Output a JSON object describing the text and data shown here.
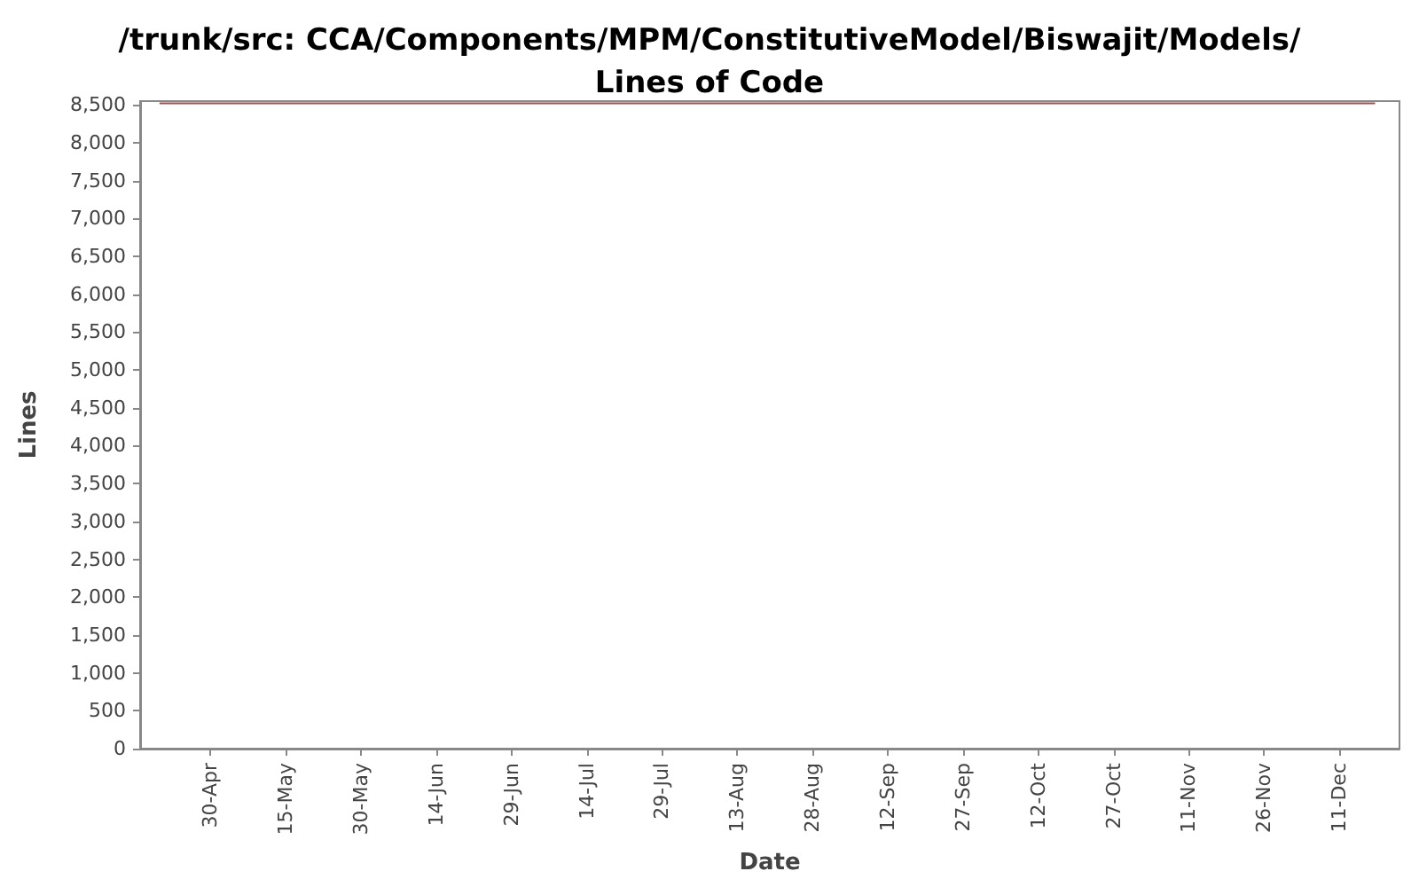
{
  "chart_data": {
    "type": "line",
    "title": "/trunk/src: CCA/Components/MPM/ConstitutiveModel/Biswajit/Models/\nLines of Code",
    "xlabel": "Date",
    "ylabel": "Lines",
    "x": [
      "--04-20",
      "--12-18"
    ],
    "series": [
      {
        "color": "#a05050",
        "values": [
          8520,
          8520
        ]
      }
    ],
    "xlim": [
      "--04-16",
      "--12-23"
    ],
    "xticks": [
      {
        "value": "--04-30",
        "label": "30-Apr"
      },
      {
        "value": "--05-15",
        "label": "15-May"
      },
      {
        "value": "--05-30",
        "label": "30-May"
      },
      {
        "value": "--06-14",
        "label": "14-Jun"
      },
      {
        "value": "--06-29",
        "label": "29-Jun"
      },
      {
        "value": "--07-14",
        "label": "14-Jul"
      },
      {
        "value": "--07-29",
        "label": "29-Jul"
      },
      {
        "value": "--08-13",
        "label": "13-Aug"
      },
      {
        "value": "--08-28",
        "label": "28-Aug"
      },
      {
        "value": "--09-12",
        "label": "12-Sep"
      },
      {
        "value": "--09-27",
        "label": "27-Sep"
      },
      {
        "value": "--10-12",
        "label": "12-Oct"
      },
      {
        "value": "--10-27",
        "label": "27-Oct"
      },
      {
        "value": "--11-11",
        "label": "11-Nov"
      },
      {
        "value": "--11-26",
        "label": "26-Nov"
      },
      {
        "value": "--12-11",
        "label": "11-Dec"
      }
    ],
    "ylim": [
      0,
      8550
    ],
    "yticks": [
      0,
      500,
      {
        "value": 1000,
        "label": "1,000"
      },
      {
        "value": 1500,
        "label": "1,500"
      },
      {
        "value": 2000,
        "label": "2,000"
      },
      {
        "value": 2500,
        "label": "2,500"
      },
      {
        "value": 3000,
        "label": "3,000"
      },
      {
        "value": 3500,
        "label": "3,500"
      },
      {
        "value": 4000,
        "label": "4,000"
      },
      {
        "value": 4500,
        "label": "4,500"
      },
      {
        "value": 5000,
        "label": "5,000"
      },
      {
        "value": 5500,
        "label": "5,500"
      },
      {
        "value": 6000,
        "label": "6,000"
      },
      {
        "value": 6500,
        "label": "6,500"
      },
      {
        "value": 7000,
        "label": "7,000"
      },
      {
        "value": 7500,
        "label": "7,500"
      },
      {
        "value": 8000,
        "label": "8,000"
      },
      {
        "value": 8500,
        "label": "8,500"
      }
    ],
    "grid": false,
    "marker": "none",
    "line_style": "solid"
  }
}
